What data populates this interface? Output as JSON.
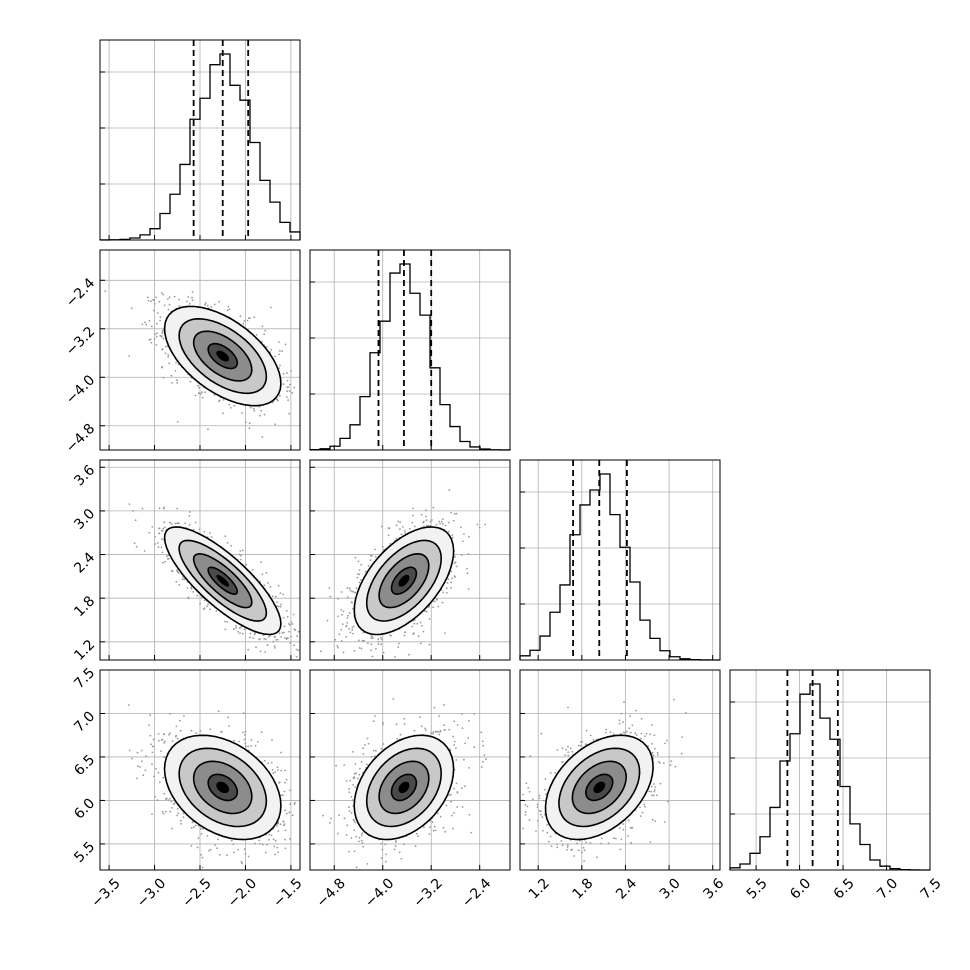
{
  "chart_data": {
    "type": "corner",
    "grid": true,
    "parameters": [
      {
        "mean": -2.25,
        "sd": 0.32,
        "range": [
          -3.6,
          -1.4
        ],
        "ticks": [
          -3.5,
          -3.0,
          -2.5,
          -2.0,
          -1.5
        ],
        "tick_labels": [
          "−3.5",
          "−3.0",
          "−2.5",
          "−2.0",
          "−1.5"
        ],
        "quantiles": [
          -2.57,
          -2.25,
          -1.97
        ]
      },
      {
        "mean": -3.65,
        "sd": 0.41,
        "range": [
          -5.2,
          -1.9
        ],
        "ticks": [
          -4.8,
          -4.0,
          -3.2,
          -2.4
        ],
        "tick_labels": [
          "−4.8",
          "−4.0",
          "−3.2",
          "−2.4"
        ],
        "quantiles": [
          -4.07,
          -3.65,
          -3.2
        ]
      },
      {
        "mean": 2.04,
        "sd": 0.37,
        "range": [
          0.95,
          3.7
        ],
        "ticks": [
          1.2,
          1.8,
          2.4,
          3.0,
          3.6
        ],
        "tick_labels": [
          "1.2",
          "1.8",
          "2.4",
          "3.0",
          "3.6"
        ],
        "quantiles": [
          1.68,
          2.04,
          2.42
        ]
      },
      {
        "mean": 6.15,
        "sd": 0.3,
        "range": [
          5.2,
          7.5
        ],
        "ticks": [
          5.5,
          6.0,
          6.5,
          7.0,
          7.5
        ],
        "tick_labels": [
          "5.5",
          "6.0",
          "6.5",
          "7.0",
          "7.5"
        ],
        "quantiles": [
          5.86,
          6.15,
          6.44
        ]
      }
    ],
    "correlations": [
      [
        1.0,
        -0.55,
        -0.8,
        -0.35
      ],
      [
        -0.55,
        1.0,
        0.55,
        0.35
      ],
      [
        -0.8,
        0.55,
        1.0,
        0.4
      ],
      [
        -0.35,
        0.35,
        0.4,
        1.0
      ]
    ],
    "contour_levels_sigma": [
      0.5,
      1.0,
      1.5,
      2.0
    ],
    "histogram_bins": 20,
    "colors": {
      "hist": "#000000",
      "points": "#9a9a9a",
      "contour": "#000000",
      "density_dark": "#000000",
      "density_light": "#f2f2f2"
    }
  }
}
